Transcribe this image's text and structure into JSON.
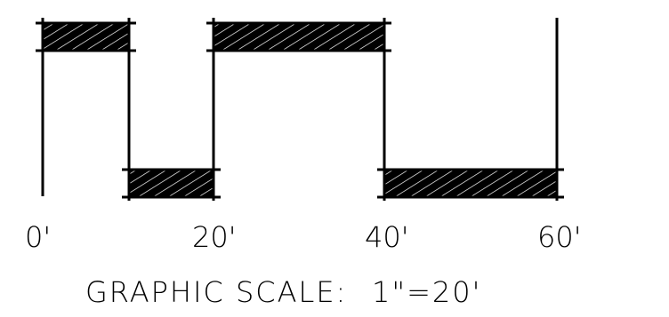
{
  "graphic_scale": {
    "tick_labels": [
      "0'",
      "20'",
      "40'",
      "60'"
    ],
    "title": "GRAPHIC SCALE:",
    "ratio": "1\"=20'",
    "segment_divisions": [
      0,
      10,
      20,
      40,
      60
    ],
    "fill_color": "#000000",
    "background_color": "#ffffff"
  }
}
